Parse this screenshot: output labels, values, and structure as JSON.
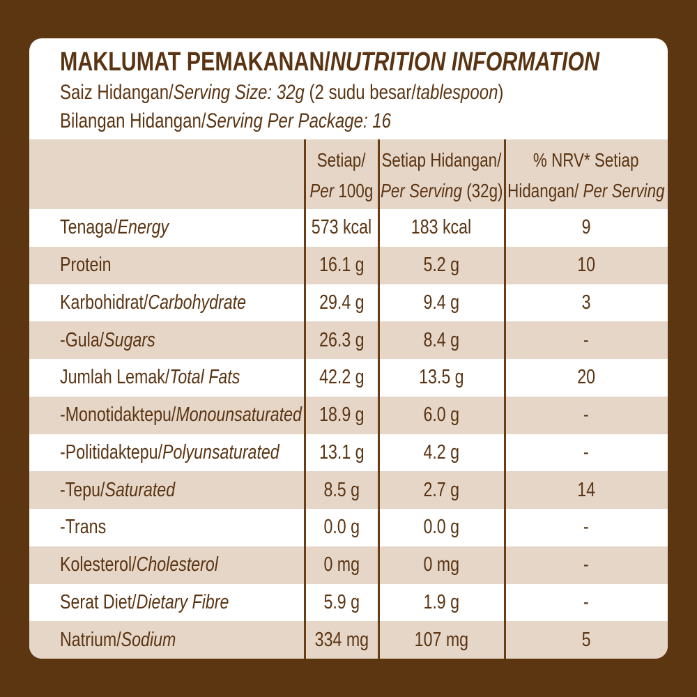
{
  "header": {
    "title": [
      {
        "text": "MAKLUMAT PEMAKANAN/",
        "italic": false
      },
      {
        "text": "NUTRITION INFORMATION",
        "italic": true
      }
    ],
    "serving_size": [
      {
        "text": "Saiz Hidangan/",
        "italic": false
      },
      {
        "text": "Serving Size: 32g",
        "italic": true
      },
      {
        "text": " (2 sudu besar/",
        "italic": false
      },
      {
        "text": "tablespoon",
        "italic": true
      },
      {
        "text": ")",
        "italic": false
      }
    ],
    "servings_per_package": [
      {
        "text": "Bilangan Hidangan/",
        "italic": false
      },
      {
        "text": "Serving Per Package: 16",
        "italic": true
      }
    ]
  },
  "table": {
    "columns": [
      [
        [
          {
            "text": "Setiap/",
            "italic": false
          }
        ],
        [
          {
            "text": "Per",
            "italic": true
          },
          {
            "text": " 100g",
            "italic": false
          }
        ]
      ],
      [
        [
          {
            "text": "Setiap Hidangan/",
            "italic": false
          }
        ],
        [
          {
            "text": "Per Serving",
            "italic": true
          },
          {
            "text": " (32g)",
            "italic": false
          }
        ]
      ],
      [
        [
          {
            "text": "% NRV* Setiap",
            "italic": false
          }
        ],
        [
          {
            "text": "Hidangan/",
            "italic": false
          },
          {
            "text": " Per Serving",
            "italic": true
          }
        ]
      ]
    ],
    "rows": [
      {
        "name": [
          {
            "text": "Tenaga/",
            "italic": false
          },
          {
            "text": "Energy",
            "italic": true
          }
        ],
        "cells": [
          "573 kcal",
          "183 kcal",
          "9"
        ]
      },
      {
        "name": [
          {
            "text": "Protein",
            "italic": false
          }
        ],
        "cells": [
          "16.1 g",
          "5.2 g",
          "10"
        ]
      },
      {
        "name": [
          {
            "text": "Karbohidrat/",
            "italic": false
          },
          {
            "text": "Carbohydrate",
            "italic": true
          }
        ],
        "cells": [
          "29.4 g",
          "9.4 g",
          "3"
        ]
      },
      {
        "name": [
          {
            "text": "-Gula/",
            "italic": false
          },
          {
            "text": "Sugars",
            "italic": true
          }
        ],
        "cells": [
          "26.3 g",
          "8.4 g",
          "-"
        ]
      },
      {
        "name": [
          {
            "text": "Jumlah Lemak/",
            "italic": false
          },
          {
            "text": "Total Fats",
            "italic": true
          }
        ],
        "cells": [
          "42.2 g",
          "13.5 g",
          "20"
        ]
      },
      {
        "name": [
          {
            "text": "-Monotidaktepu/",
            "italic": false
          },
          {
            "text": "Monounsaturated",
            "italic": true
          }
        ],
        "cells": [
          "18.9 g",
          "6.0 g",
          "-"
        ]
      },
      {
        "name": [
          {
            "text": "-Politidaktepu/",
            "italic": false
          },
          {
            "text": "Polyunsaturated",
            "italic": true
          }
        ],
        "cells": [
          "13.1 g",
          "4.2 g",
          "-"
        ]
      },
      {
        "name": [
          {
            "text": "-Tepu/",
            "italic": false
          },
          {
            "text": "Saturated",
            "italic": true
          }
        ],
        "cells": [
          "8.5 g",
          "2.7 g",
          "14"
        ]
      },
      {
        "name": [
          {
            "text": "-Trans",
            "italic": false
          }
        ],
        "cells": [
          "0.0 g",
          "0.0 g",
          "-"
        ]
      },
      {
        "name": [
          {
            "text": "Kolesterol/",
            "italic": false
          },
          {
            "text": "Cholesterol",
            "italic": true
          }
        ],
        "cells": [
          "0 mg",
          "0 mg",
          "-"
        ]
      },
      {
        "name": [
          {
            "text": "Serat Diet/",
            "italic": false
          },
          {
            "text": "Dietary Fibre",
            "italic": true
          }
        ],
        "cells": [
          "5.9 g",
          "1.9 g",
          "-"
        ]
      },
      {
        "name": [
          {
            "text": "Natrium/",
            "italic": false
          },
          {
            "text": "Sodium",
            "italic": true
          }
        ],
        "cells": [
          "334 mg",
          "107 mg",
          "5"
        ]
      }
    ]
  }
}
